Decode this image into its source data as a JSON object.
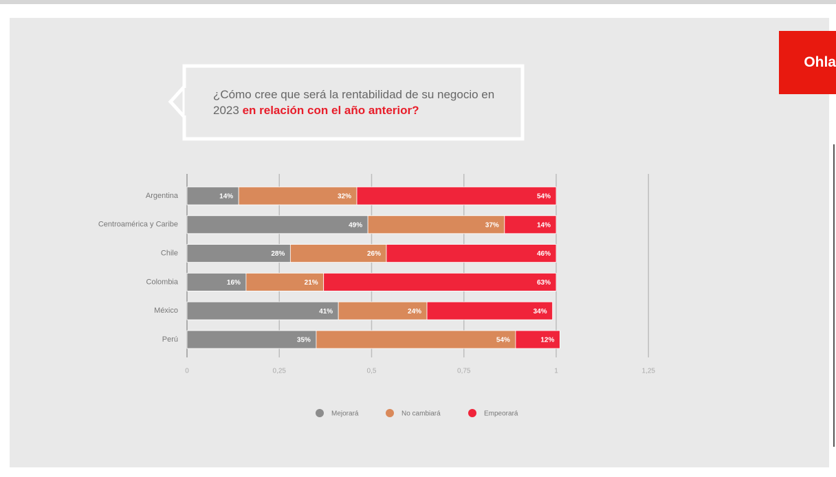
{
  "logo": "Ohla",
  "chart_data": {
    "type": "bar",
    "orientation": "horizontal",
    "stacked": true,
    "question": {
      "text": "¿Cómo cree que será la rentabilidad de su negocio en 2023",
      "highlight": "en relación con el año anterior?"
    },
    "categories": [
      "Argentina",
      "Centroamérica y Caribe",
      "Chile",
      "Colombia",
      "México",
      "Perú"
    ],
    "series": [
      {
        "name": "Mejorará",
        "color": "#8c8c8c",
        "values": [
          0.14,
          0.49,
          0.28,
          0.16,
          0.41,
          0.35
        ],
        "value_labels": [
          "14%",
          "49%",
          "28%",
          "16%",
          "41%",
          "35%"
        ]
      },
      {
        "name": "No cambiará",
        "color": "#d9895a",
        "values": [
          0.32,
          0.37,
          0.26,
          0.21,
          0.24,
          0.54
        ],
        "value_labels": [
          "32%",
          "37%",
          "26%",
          "21%",
          "24%",
          "54%"
        ]
      },
      {
        "name": "Empeorará",
        "color": "#f0243a",
        "values": [
          0.54,
          0.14,
          0.46,
          0.63,
          0.34,
          0.12
        ],
        "value_labels": [
          "54%",
          "14%",
          "46%",
          "63%",
          "34%",
          "12%"
        ]
      }
    ],
    "xlim": [
      0,
      1.25
    ],
    "xticks": [
      0,
      {
        "value": 0.25,
        "label": "0,25"
      },
      {
        "value": 0.5,
        "label": "0,5"
      },
      {
        "value": 0.75,
        "label": "0,75"
      },
      1,
      {
        "value": 1.25,
        "label": "1,25"
      }
    ],
    "grid": true,
    "legend": "bottom"
  }
}
